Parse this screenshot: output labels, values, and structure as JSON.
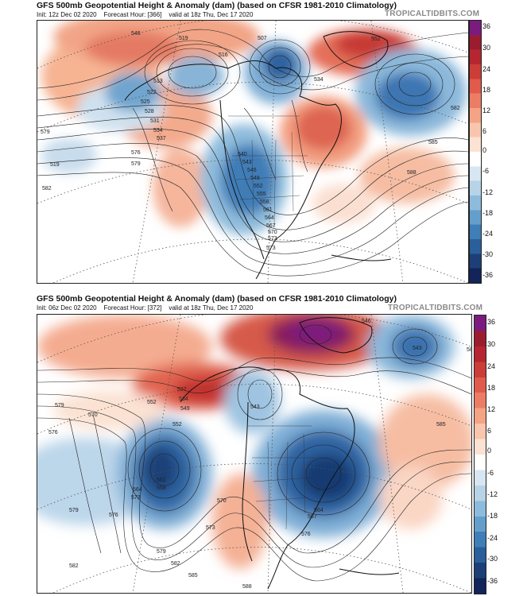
{
  "panels": [
    {
      "title": "GFS 500mb Geopotential Height & Anomaly (dam) (based on CFSR 1981-2010 Climatology)",
      "init": "Init: 12z Dec 02 2020",
      "forecast_hour": "Forecast Hour: [366]",
      "valid": "valid at 18z Thu, Dec 17 2020",
      "brand": "TROPICALTIDBITS.COM",
      "contour_labels": [
        "546",
        "519",
        "516",
        "507",
        "513",
        "522",
        "525",
        "528",
        "531",
        "534",
        "537",
        "540",
        "543",
        "546",
        "549",
        "552",
        "555",
        "558",
        "561",
        "564",
        "567",
        "570",
        "573",
        "576",
        "579",
        "582",
        "585",
        "588",
        "573",
        "582",
        "579",
        "519",
        "534",
        "552"
      ]
    },
    {
      "title": "GFS 500mb Geopotential Height & Anomaly (dam) (based on CFSR 1981-2010 Climatology)",
      "init": "Init: 06z Dec 02 2020",
      "forecast_hour": "Forecast Hour: [372]",
      "valid": "valid at 18z Thu, Dec 17 2020",
      "brand": "TROPICALTIDBITS.COM",
      "contour_labels": [
        "546",
        "543",
        "537",
        "534",
        "552",
        "549",
        "576",
        "570",
        "579",
        "579",
        "576",
        "573",
        "564",
        "561",
        "558",
        "552",
        "543",
        "582",
        "585",
        "588",
        "564",
        "567",
        "570",
        "573",
        "576",
        "579",
        "582",
        "585",
        "582"
      ]
    }
  ],
  "colorbar": {
    "ticks": [
      "36",
      "30",
      "24",
      "18",
      "12",
      "6",
      "0",
      "-6",
      "-12",
      "-18",
      "-24",
      "-30",
      "-36"
    ],
    "colors": [
      "#7b1b7e",
      "#9c1c2f",
      "#b52630",
      "#cd3d38",
      "#e05b4b",
      "#ec7d65",
      "#f4a385",
      "#f8c6ad",
      "#fbe2d3",
      "#ffffff",
      "#d7e6f1",
      "#b7d3e8",
      "#8ebbdc",
      "#649fcc",
      "#3f7fb7",
      "#2a5f9b",
      "#1c3f78",
      "#13245a"
    ]
  }
}
